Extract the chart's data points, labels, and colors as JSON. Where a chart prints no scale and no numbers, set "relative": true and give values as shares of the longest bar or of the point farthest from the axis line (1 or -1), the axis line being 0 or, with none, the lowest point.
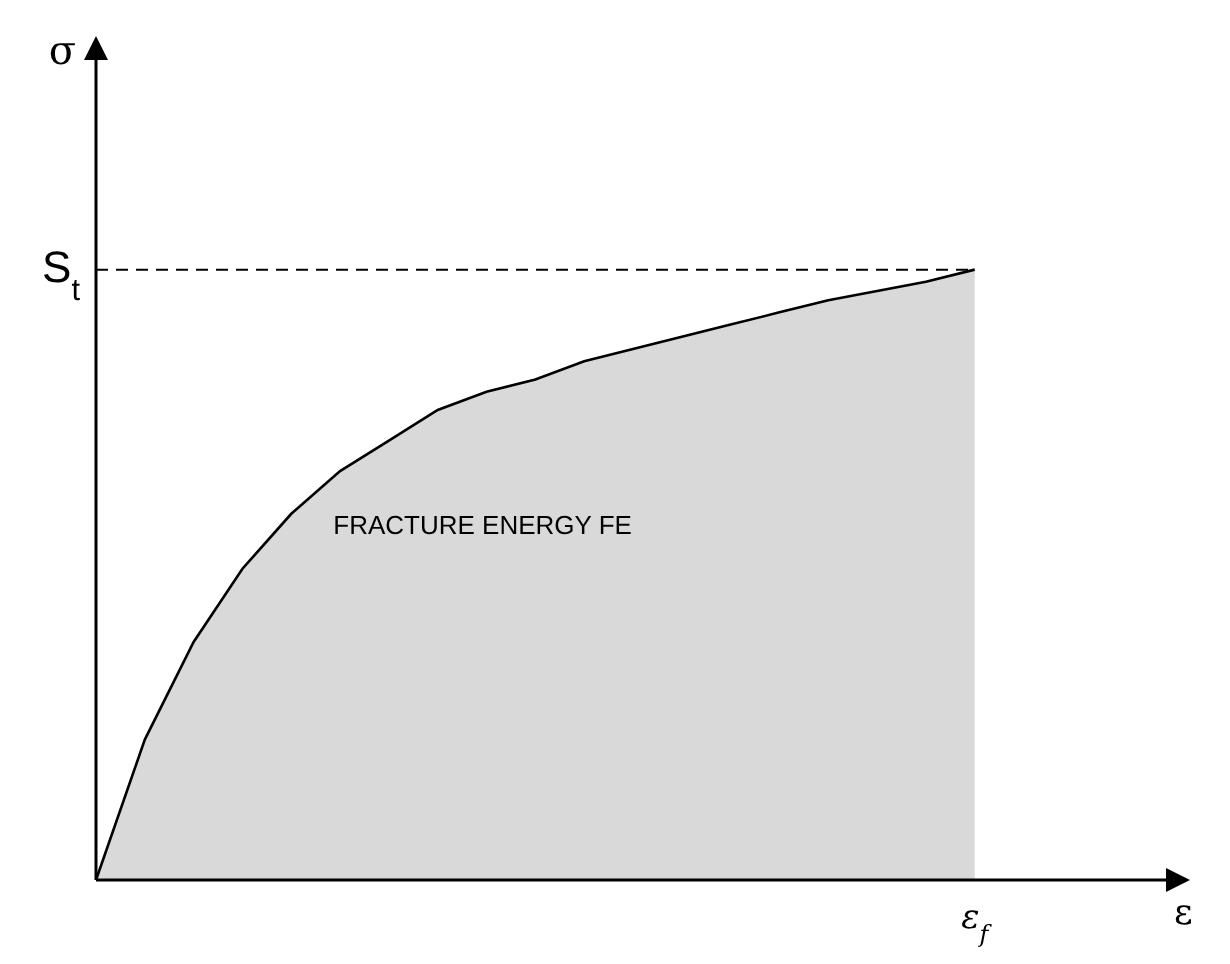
{
  "chart_data": {
    "type": "area",
    "relative": true,
    "xlabel": "ε",
    "ylabel": "σ",
    "color": "#d9d9d9",
    "categories": [
      null,
      null,
      null,
      null,
      null,
      null,
      null,
      null,
      null,
      null,
      null,
      null,
      null,
      null,
      null,
      null,
      null,
      null,
      null,
      null,
      null,
      null,
      null
    ],
    "values": [
      0,
      0.23,
      0.39,
      0.51,
      0.6,
      0.67,
      0.72,
      0.77,
      0.8,
      0.82,
      0.85,
      0.87,
      0.89,
      0.91,
      0.93,
      0.95,
      0.965,
      0.98,
      1,
      null,
      null,
      null,
      null
    ],
    "ref_lines": [
      {
        "axis": "y",
        "value": 1,
        "label": "S$_{t}$",
        "line_style": "dashed"
      }
    ],
    "annotations": [
      "FRACTURE ENERGY FE",
      "ε$_{f}$"
    ]
  }
}
